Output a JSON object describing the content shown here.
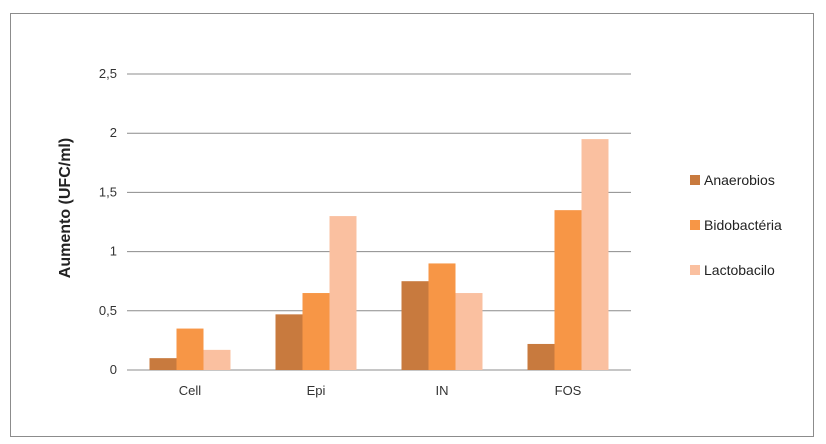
{
  "chart_data": {
    "type": "bar",
    "title": "",
    "xlabel": "",
    "ylabel": "Aumento (UFC/ml)",
    "categories": [
      "Cell",
      "Epi",
      "IN",
      "FOS"
    ],
    "series": [
      {
        "name": "Anaerobios",
        "values": [
          0.1,
          0.47,
          0.75,
          0.22
        ],
        "color": "#c87a3e"
      },
      {
        "name": "Bidobactéria",
        "values": [
          0.35,
          0.65,
          0.9,
          1.35
        ],
        "color": "#f79646"
      },
      {
        "name": "Lactobacilo",
        "values": [
          0.17,
          1.3,
          0.65,
          1.95
        ],
        "color": "#fac0a0"
      }
    ],
    "ylim": [
      0,
      2.5
    ],
    "yticks": [
      0,
      0.5,
      1,
      1.5,
      2,
      2.5
    ],
    "ytick_labels": [
      "0",
      "0,5",
      "1",
      "1,5",
      "2",
      "2,5"
    ],
    "grid": true,
    "legend_position": "right"
  }
}
